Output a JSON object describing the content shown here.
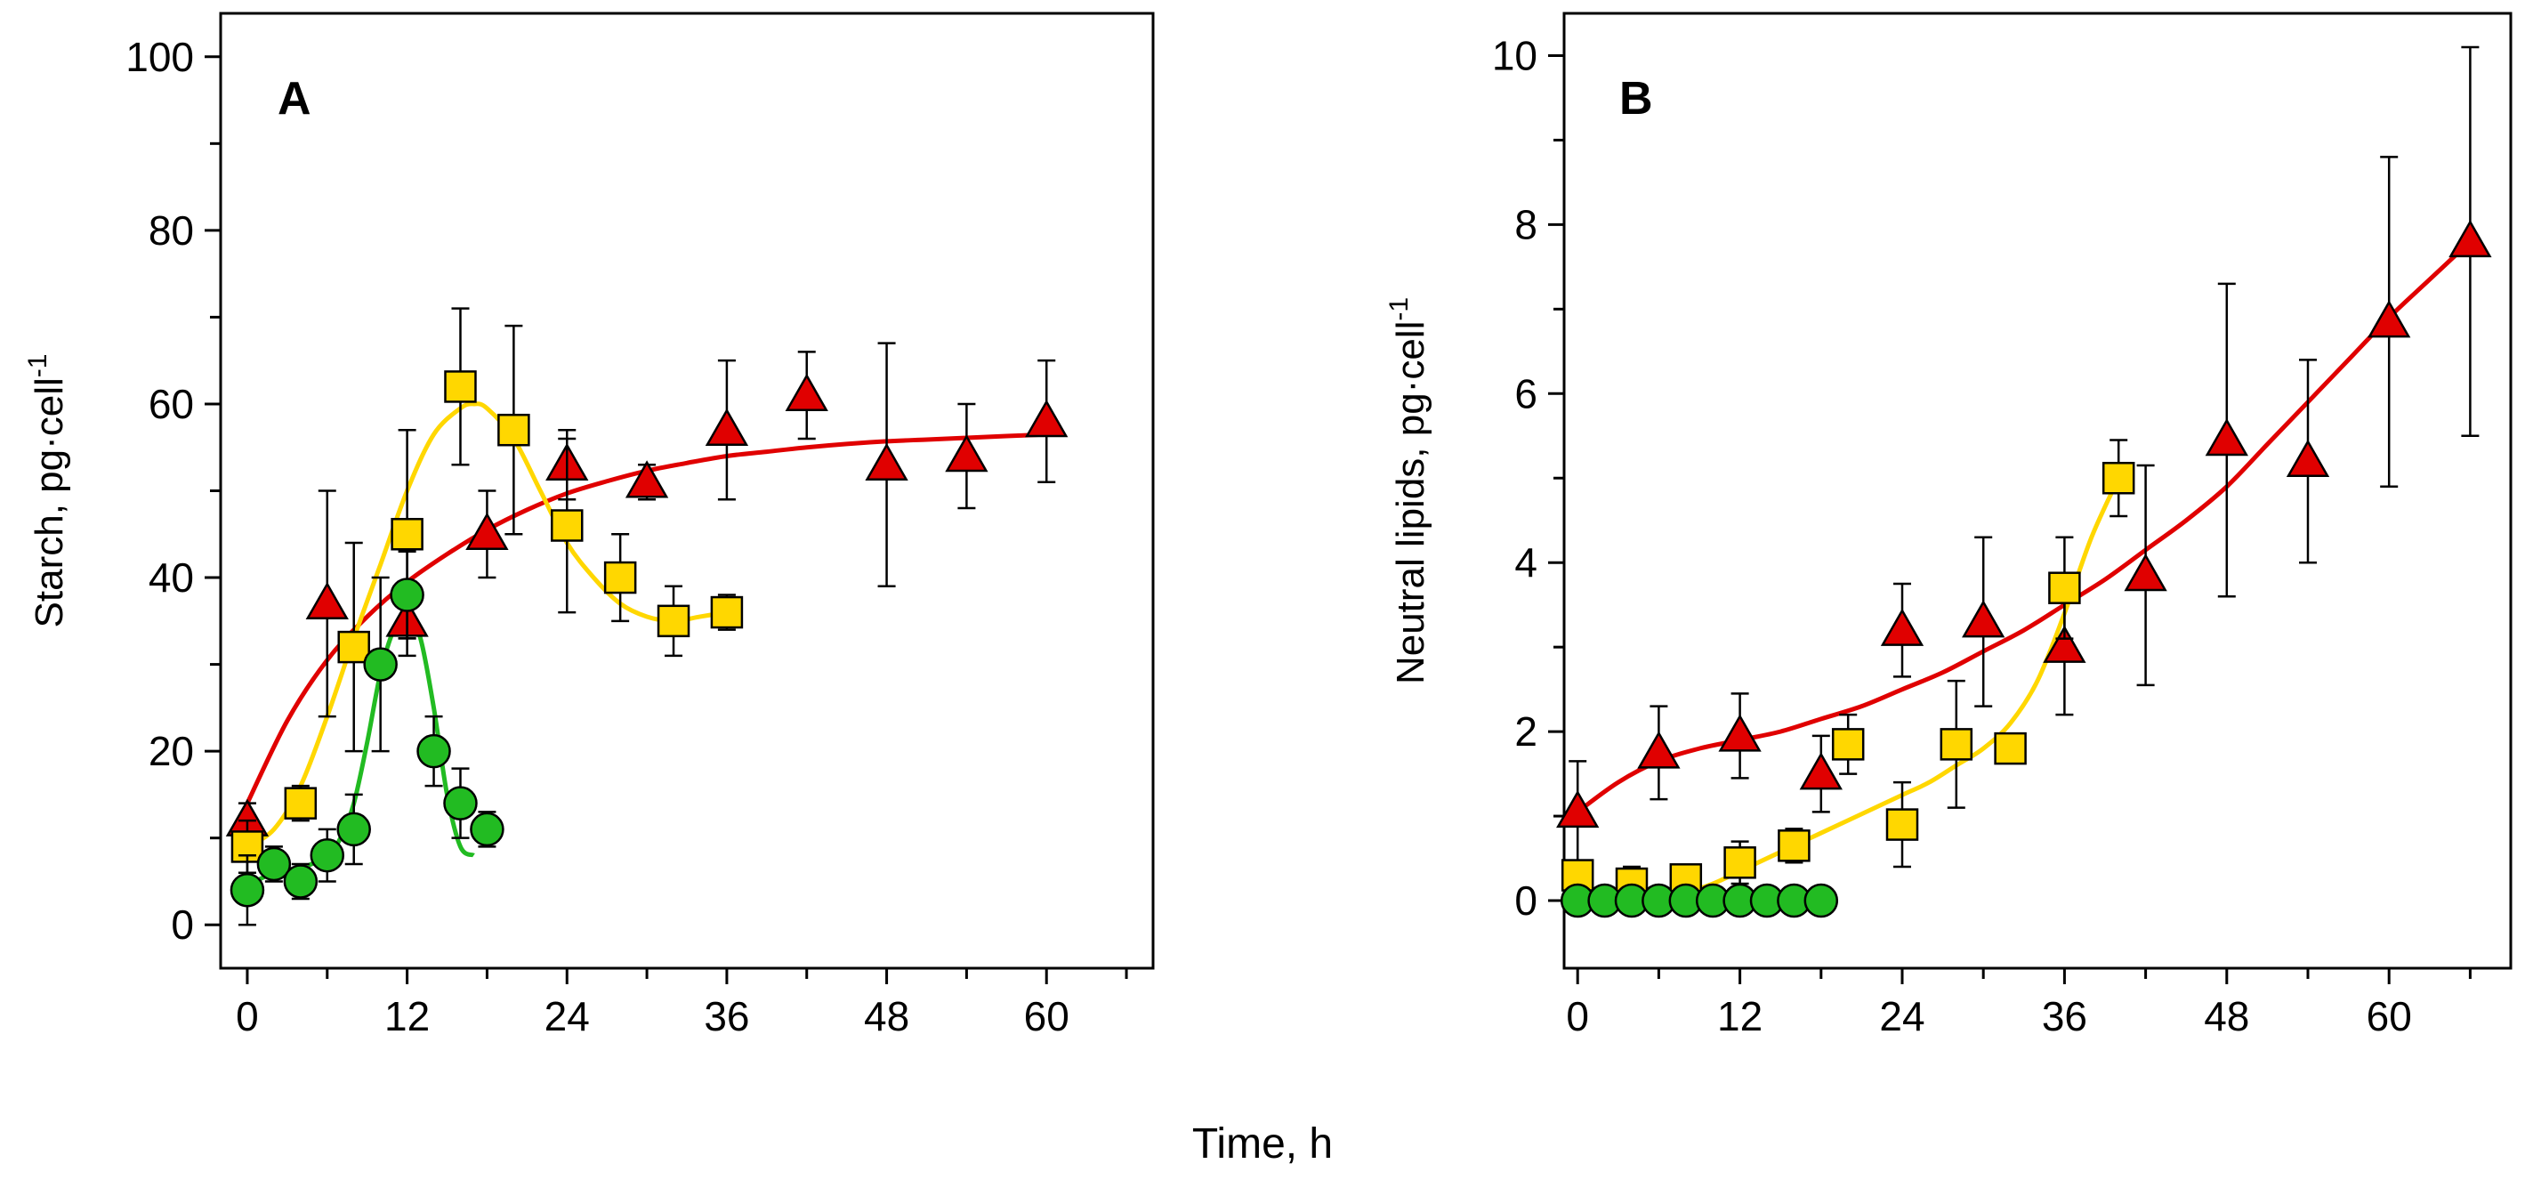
{
  "chart_data": [
    {
      "type": "scatter",
      "panel_label": "A",
      "xlabel": "",
      "ylabel": "Starch, pg·cell",
      "ylabel_superscript": "-1",
      "xlim": [
        -2,
        68
      ],
      "ylim": [
        -5,
        105
      ],
      "xticks": [
        0,
        12,
        24,
        36,
        48,
        60
      ],
      "yticks": [
        0,
        20,
        40,
        60,
        80,
        100
      ],
      "series": [
        {
          "name": "red-triangles",
          "marker": "triangle",
          "color": "#e00000",
          "x": [
            0,
            6,
            12,
            18,
            24,
            30,
            36,
            42,
            48,
            54,
            60
          ],
          "y": [
            12,
            37,
            35,
            45,
            53,
            51,
            57,
            61,
            53,
            54,
            58
          ],
          "err": [
            2,
            13,
            4,
            5,
            4,
            2,
            8,
            5,
            14,
            6,
            7
          ],
          "fit_x": [
            0,
            3,
            6,
            9,
            12,
            15,
            18,
            21,
            24,
            27,
            30,
            33,
            36,
            39,
            42,
            45,
            48,
            51,
            54,
            57,
            60
          ],
          "fit_y": [
            14,
            23.5,
            30.5,
            35.5,
            39.5,
            42.7,
            45.5,
            47.8,
            49.7,
            51.1,
            52.3,
            53.2,
            54,
            54.5,
            55,
            55.4,
            55.7,
            55.9,
            56.1,
            56.3,
            56.5
          ]
        },
        {
          "name": "yellow-squares",
          "marker": "square",
          "color": "#ffd700",
          "x": [
            0,
            4,
            8,
            12,
            16,
            20,
            24,
            28,
            32,
            36
          ],
          "y": [
            9,
            14,
            32,
            45,
            62,
            57,
            46,
            40,
            35,
            36
          ],
          "err": [
            3,
            2,
            12,
            12,
            9,
            12,
            10,
            5,
            4,
            2
          ],
          "fit_x": [
            0,
            2,
            4,
            6,
            8,
            10,
            12,
            14,
            16,
            17,
            18,
            20,
            22,
            24,
            26,
            28,
            30,
            32,
            34,
            36
          ],
          "fit_y": [
            9,
            11,
            16,
            24,
            33,
            41.5,
            50,
            56.5,
            59.5,
            60,
            59.5,
            56,
            50,
            44,
            40,
            37,
            35.5,
            35,
            35.5,
            36
          ]
        },
        {
          "name": "green-circles",
          "marker": "circle",
          "color": "#22bb22",
          "x": [
            0,
            2,
            4,
            6,
            8,
            10,
            12,
            14,
            16,
            18
          ],
          "y": [
            4,
            7,
            5,
            8,
            11,
            30,
            38,
            20,
            14,
            11
          ],
          "err": [
            4,
            2,
            2,
            3,
            4,
            10,
            5,
            4,
            4,
            2
          ],
          "fit_x": [
            0,
            2,
            4,
            6,
            7,
            8,
            9,
            10,
            11,
            12,
            13,
            14,
            15,
            16,
            17
          ],
          "fit_y": [
            4.5,
            6,
            6.5,
            8,
            10,
            14,
            21,
            29,
            34,
            36,
            33,
            25,
            15,
            9,
            8
          ]
        }
      ]
    },
    {
      "type": "scatter",
      "panel_label": "B",
      "xlabel": "",
      "ylabel": "Neutral lipids, pg·cell",
      "ylabel_superscript": "-1",
      "xlim": [
        -1,
        69
      ],
      "ylim": [
        -0.8,
        10.5
      ],
      "xticks": [
        0,
        12,
        24,
        36,
        48,
        60
      ],
      "yticks": [
        0,
        2,
        4,
        6,
        8,
        10
      ],
      "series": [
        {
          "name": "red-triangles",
          "marker": "triangle",
          "color": "#e00000",
          "x": [
            0,
            6,
            12,
            18,
            24,
            30,
            36,
            42,
            48,
            54,
            60,
            66
          ],
          "y": [
            1.05,
            1.75,
            1.95,
            1.5,
            3.2,
            3.3,
            3.0,
            3.85,
            5.45,
            5.2,
            6.85,
            7.8
          ],
          "err": [
            0.6,
            0.55,
            0.5,
            0.45,
            0.55,
            1.0,
            0.8,
            1.3,
            1.85,
            1.2,
            1.95,
            2.3
          ],
          "fit_x": [
            0,
            3,
            6,
            9,
            12,
            15,
            18,
            21,
            24,
            27,
            30,
            33,
            36,
            39,
            42,
            45,
            48,
            51,
            54,
            57,
            60,
            63,
            66
          ],
          "fit_y": [
            1.05,
            1.4,
            1.65,
            1.8,
            1.9,
            2.0,
            2.15,
            2.3,
            2.5,
            2.7,
            2.95,
            3.2,
            3.5,
            3.8,
            4.15,
            4.5,
            4.9,
            5.4,
            5.9,
            6.4,
            6.9,
            7.35,
            7.8
          ]
        },
        {
          "name": "yellow-squares",
          "marker": "square",
          "color": "#ffd700",
          "x": [
            0,
            4,
            8,
            12,
            16,
            20,
            24,
            28,
            32,
            36,
            40
          ],
          "y": [
            0.3,
            0.2,
            0.25,
            0.45,
            0.65,
            1.85,
            0.9,
            1.85,
            1.8,
            3.7,
            5.0
          ],
          "err": [
            0.15,
            0.2,
            0.15,
            0.25,
            0.2,
            0.35,
            0.5,
            0.75,
            0.15,
            0.6,
            0.45
          ],
          "fit_x": [
            0,
            2,
            4,
            6,
            8,
            10,
            12,
            14,
            16,
            18,
            20,
            22,
            24,
            26,
            28,
            30,
            32,
            34,
            36,
            38,
            40
          ],
          "fit_y": [
            0.2,
            0.1,
            0.05,
            0.05,
            0.1,
            0.2,
            0.35,
            0.5,
            0.65,
            0.8,
            0.95,
            1.1,
            1.25,
            1.4,
            1.6,
            1.8,
            2.1,
            2.6,
            3.4,
            4.3,
            5.0
          ]
        },
        {
          "name": "green-circles",
          "marker": "circle",
          "color": "#22bb22",
          "x": [
            0,
            2,
            4,
            6,
            8,
            10,
            12,
            14,
            16,
            18
          ],
          "y": [
            0,
            0,
            0,
            0,
            0,
            0,
            0,
            0,
            0,
            0
          ],
          "err": [
            0,
            0,
            0,
            0,
            0,
            0,
            0,
            0,
            0,
            0
          ],
          "fit_x": [],
          "fit_y": []
        }
      ]
    }
  ],
  "shared_xlabel": "Time, h"
}
